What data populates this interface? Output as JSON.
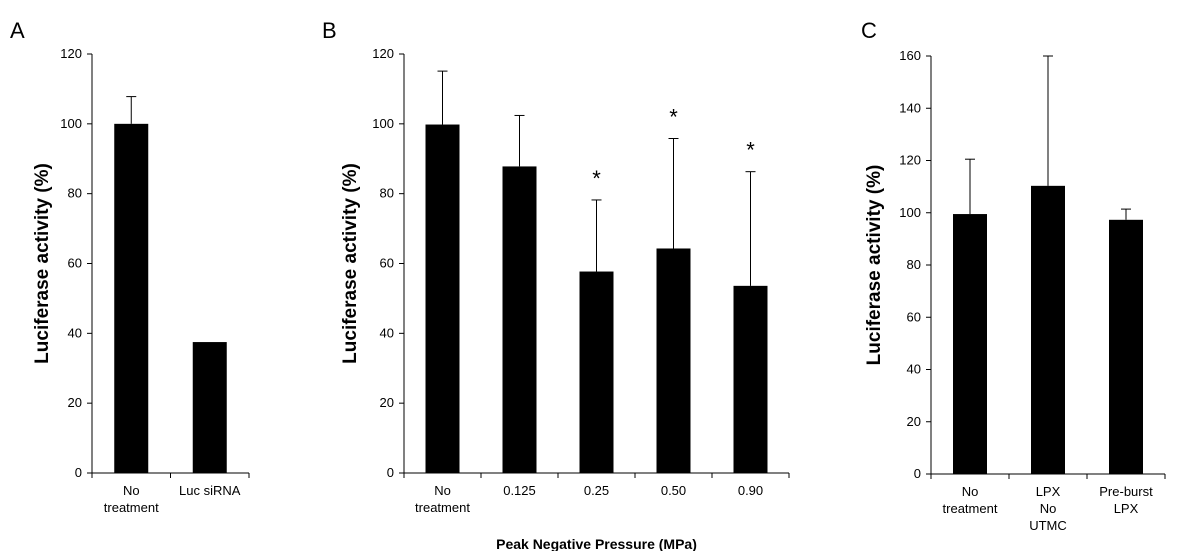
{
  "chart_data": [
    {
      "type": "bar",
      "panel": "A",
      "ylabel": "Luciferase activity (%)",
      "xlabel": "",
      "ylim": [
        0,
        120
      ],
      "yticks": [
        0,
        20,
        40,
        60,
        80,
        100,
        120
      ],
      "categories": [
        [
          "No",
          "treatment"
        ],
        [
          "Luc siRNA"
        ]
      ],
      "values": [
        100,
        37.5
      ],
      "errors": [
        7.8,
        0
      ],
      "significance": [
        "",
        ""
      ],
      "bar_color": "#000000"
    },
    {
      "type": "bar",
      "panel": "B",
      "ylabel": "Luciferase activity (%)",
      "xlabel": "Peak Negative Pressure (MPa)",
      "ylim": [
        0,
        120
      ],
      "yticks": [
        0,
        20,
        40,
        60,
        80,
        100,
        120
      ],
      "categories": [
        [
          "No",
          "treatment"
        ],
        [
          "0.125"
        ],
        [
          "0.25"
        ],
        [
          "0.50"
        ],
        [
          "0.90"
        ]
      ],
      "values": [
        99.8,
        87.8,
        57.7,
        64.3,
        53.6
      ],
      "errors": [
        15.3,
        14.6,
        20.5,
        31.5,
        32.7
      ],
      "significance": [
        "",
        "",
        "*",
        "*",
        "*"
      ],
      "bar_color": "#000000"
    },
    {
      "type": "bar",
      "panel": "C",
      "ylabel": "Luciferase activity (%)",
      "xlabel": "",
      "ylim": [
        0,
        160
      ],
      "yticks": [
        0,
        20,
        40,
        60,
        80,
        100,
        120,
        140,
        160
      ],
      "categories": [
        [
          "No",
          "treatment"
        ],
        [
          "LPX",
          "No",
          "UTMC"
        ],
        [
          "Pre-burst",
          "LPX"
        ]
      ],
      "values": [
        99.5,
        110.3,
        97.3
      ],
      "errors": [
        21.0,
        49.7,
        4.1
      ],
      "significance": [
        "",
        "",
        ""
      ],
      "bar_color": "#000000"
    }
  ]
}
